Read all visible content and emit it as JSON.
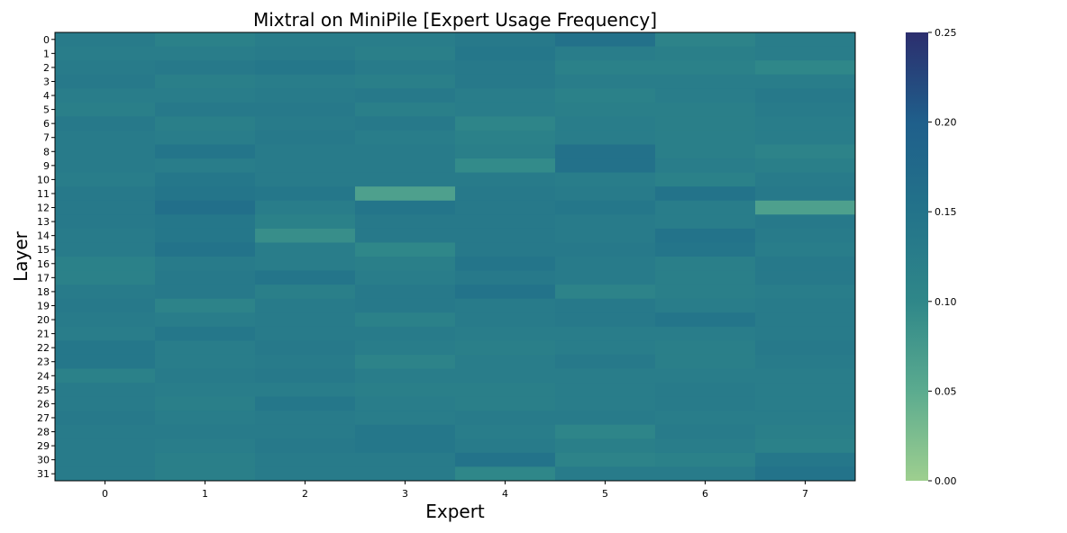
{
  "chart_data": {
    "type": "heatmap",
    "title": "Mixtral on MiniPile [Expert Usage Frequency]",
    "xlabel": "Expert",
    "ylabel": "Layer",
    "x_categories": [
      "0",
      "1",
      "2",
      "3",
      "4",
      "5",
      "6",
      "7"
    ],
    "y_categories": [
      "0",
      "1",
      "2",
      "3",
      "4",
      "5",
      "6",
      "7",
      "8",
      "9",
      "10",
      "11",
      "12",
      "13",
      "14",
      "15",
      "16",
      "17",
      "18",
      "19",
      "20",
      "21",
      "22",
      "23",
      "24",
      "25",
      "26",
      "27",
      "28",
      "29",
      "30",
      "31"
    ],
    "colorbar": {
      "range": [
        0,
        0.25
      ],
      "ticks": [
        "0.00",
        "0.05",
        "0.10",
        "0.15",
        "0.20",
        "0.25"
      ],
      "colors": [
        "#9ecf8f",
        "#5bab8f",
        "#2f8789",
        "#23738a",
        "#1f5f8b",
        "#2c2e6e"
      ]
    },
    "values": [
      [
        0.13,
        0.115,
        0.125,
        0.125,
        0.135,
        0.155,
        0.11,
        0.125
      ],
      [
        0.125,
        0.125,
        0.13,
        0.12,
        0.14,
        0.125,
        0.12,
        0.125
      ],
      [
        0.13,
        0.135,
        0.14,
        0.13,
        0.135,
        0.115,
        0.115,
        0.1
      ],
      [
        0.135,
        0.12,
        0.125,
        0.12,
        0.135,
        0.125,
        0.125,
        0.125
      ],
      [
        0.125,
        0.125,
        0.13,
        0.135,
        0.125,
        0.115,
        0.125,
        0.135
      ],
      [
        0.12,
        0.135,
        0.135,
        0.12,
        0.125,
        0.12,
        0.12,
        0.13
      ],
      [
        0.135,
        0.12,
        0.13,
        0.135,
        0.105,
        0.125,
        0.12,
        0.125
      ],
      [
        0.13,
        0.125,
        0.135,
        0.125,
        0.115,
        0.125,
        0.12,
        0.125
      ],
      [
        0.13,
        0.145,
        0.13,
        0.13,
        0.12,
        0.155,
        0.12,
        0.11
      ],
      [
        0.13,
        0.125,
        0.13,
        0.13,
        0.095,
        0.155,
        0.125,
        0.12
      ],
      [
        0.125,
        0.14,
        0.13,
        0.13,
        0.13,
        0.125,
        0.115,
        0.13
      ],
      [
        0.135,
        0.145,
        0.14,
        0.065,
        0.135,
        0.13,
        0.15,
        0.135
      ],
      [
        0.135,
        0.16,
        0.125,
        0.145,
        0.135,
        0.14,
        0.125,
        0.065
      ],
      [
        0.135,
        0.14,
        0.115,
        0.135,
        0.135,
        0.13,
        0.125,
        0.135
      ],
      [
        0.13,
        0.14,
        0.09,
        0.135,
        0.135,
        0.13,
        0.15,
        0.13
      ],
      [
        0.13,
        0.15,
        0.125,
        0.1,
        0.135,
        0.135,
        0.145,
        0.125
      ],
      [
        0.115,
        0.13,
        0.125,
        0.12,
        0.145,
        0.13,
        0.12,
        0.135
      ],
      [
        0.115,
        0.135,
        0.145,
        0.125,
        0.135,
        0.13,
        0.12,
        0.135
      ],
      [
        0.13,
        0.135,
        0.12,
        0.135,
        0.15,
        0.11,
        0.12,
        0.125
      ],
      [
        0.135,
        0.11,
        0.13,
        0.135,
        0.13,
        0.135,
        0.125,
        0.13
      ],
      [
        0.13,
        0.125,
        0.13,
        0.115,
        0.13,
        0.135,
        0.145,
        0.13
      ],
      [
        0.125,
        0.14,
        0.13,
        0.13,
        0.125,
        0.125,
        0.125,
        0.13
      ],
      [
        0.14,
        0.125,
        0.135,
        0.125,
        0.12,
        0.125,
        0.12,
        0.135
      ],
      [
        0.14,
        0.125,
        0.13,
        0.11,
        0.125,
        0.135,
        0.12,
        0.13
      ],
      [
        0.115,
        0.13,
        0.135,
        0.125,
        0.125,
        0.125,
        0.125,
        0.125
      ],
      [
        0.13,
        0.125,
        0.125,
        0.12,
        0.12,
        0.125,
        0.13,
        0.125
      ],
      [
        0.13,
        0.12,
        0.14,
        0.125,
        0.12,
        0.125,
        0.13,
        0.125
      ],
      [
        0.135,
        0.125,
        0.13,
        0.125,
        0.13,
        0.13,
        0.125,
        0.125
      ],
      [
        0.13,
        0.13,
        0.13,
        0.14,
        0.125,
        0.105,
        0.13,
        0.12
      ],
      [
        0.13,
        0.125,
        0.135,
        0.14,
        0.13,
        0.12,
        0.125,
        0.115
      ],
      [
        0.13,
        0.12,
        0.13,
        0.13,
        0.15,
        0.11,
        0.115,
        0.14
      ],
      [
        0.13,
        0.12,
        0.13,
        0.13,
        0.1,
        0.13,
        0.13,
        0.15
      ]
    ]
  }
}
